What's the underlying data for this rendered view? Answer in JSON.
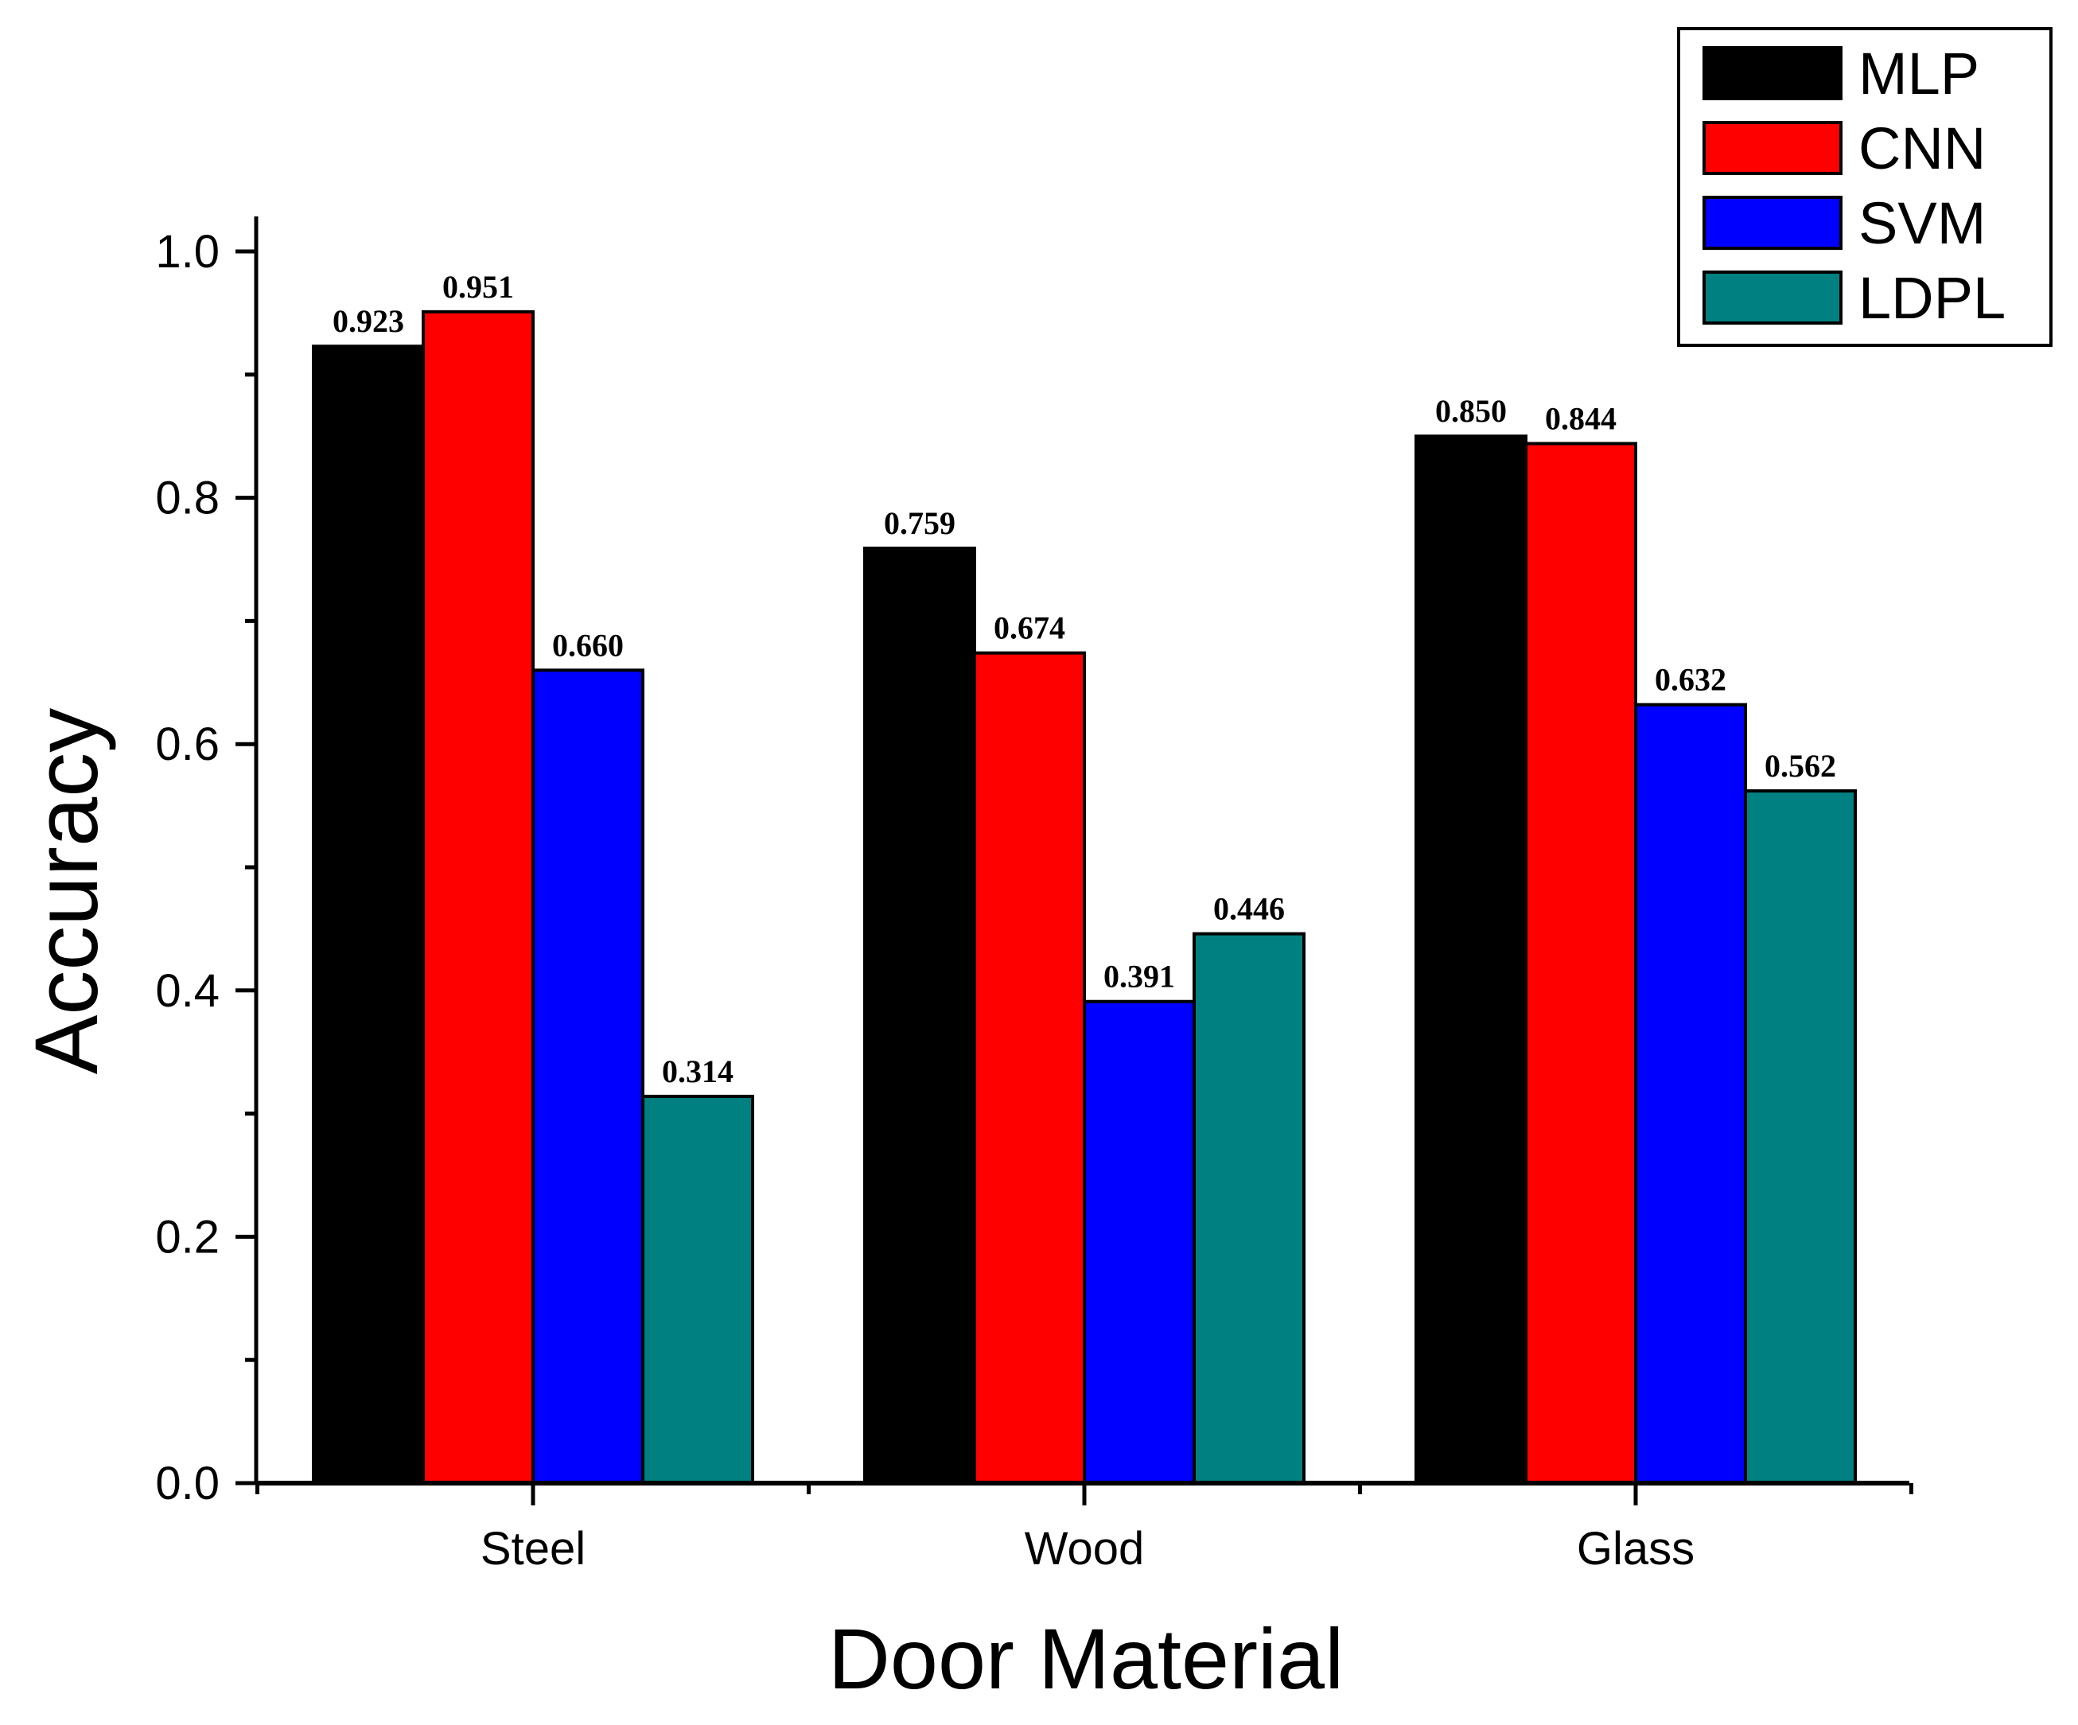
{
  "chart_data": {
    "type": "bar",
    "title": "",
    "xlabel": "Door Material",
    "ylabel": "Accuracy",
    "categories": [
      "Steel",
      "Wood",
      "Glass"
    ],
    "series": [
      {
        "name": "MLP",
        "color": "#000000",
        "values": [
          0.923,
          0.759,
          0.85
        ],
        "labels": [
          "0.923",
          "0.759",
          "0.850"
        ]
      },
      {
        "name": "CNN",
        "color": "#ff0000",
        "values": [
          0.951,
          0.674,
          0.844
        ],
        "labels": [
          "0.951",
          "0.674",
          "0.844"
        ]
      },
      {
        "name": "SVM",
        "color": "#0000ff",
        "values": [
          0.66,
          0.391,
          0.632
        ],
        "labels": [
          "0.660",
          "0.391",
          "0.632"
        ]
      },
      {
        "name": "LDPL",
        "color": "#008080",
        "values": [
          0.314,
          0.446,
          0.562
        ],
        "labels": [
          "0.314",
          "0.446",
          "0.562"
        ]
      }
    ],
    "ylim": [
      0,
      1.0
    ],
    "yticks": [
      "0.0",
      "0.2",
      "0.4",
      "0.6",
      "0.8",
      "1.0"
    ],
    "grid": false,
    "legend_position": "top-right"
  }
}
